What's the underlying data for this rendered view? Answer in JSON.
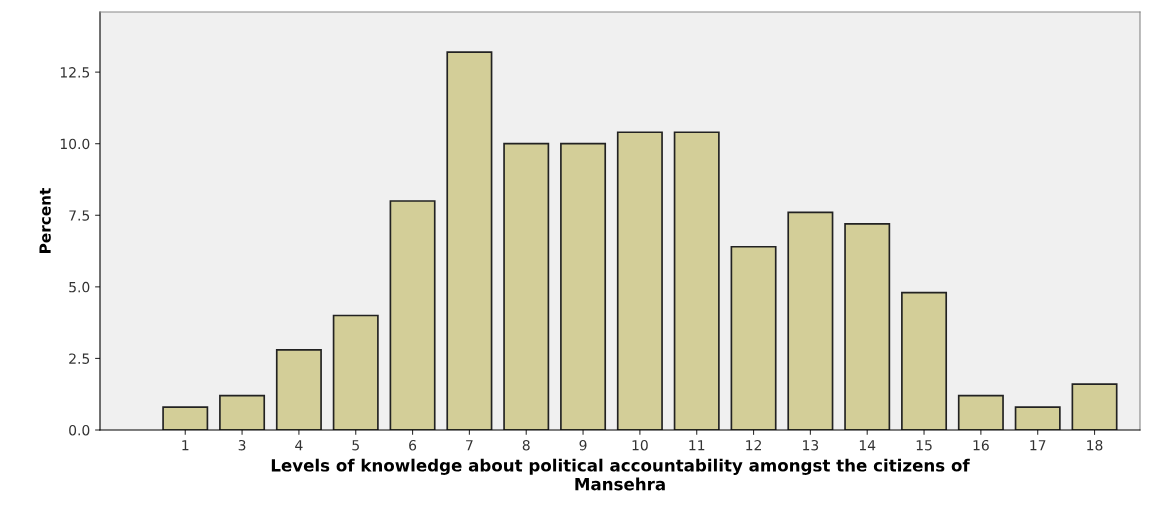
{
  "chart_data": {
    "type": "bar",
    "xlabel": "Levels of knowledge about political accountability amongst the citizens of\nMansehra",
    "ylabel": "Percent",
    "categories": [
      "1",
      "3",
      "4",
      "5",
      "6",
      "7",
      "8",
      "9",
      "10",
      "11",
      "12",
      "13",
      "14",
      "15",
      "16",
      "17",
      "18"
    ],
    "values": [
      0.8,
      1.2,
      2.8,
      4.0,
      8.0,
      13.2,
      10.0,
      10.0,
      10.4,
      10.4,
      6.4,
      7.6,
      7.2,
      4.8,
      1.2,
      0.8,
      1.6
    ],
    "color": "#d3ce98",
    "ylim": [
      0,
      14.6
    ],
    "yticks": [
      {
        "value": 0,
        "label": "0.0"
      },
      {
        "value": 2.5,
        "label": "2.5"
      },
      {
        "value": 5,
        "label": "5.0"
      },
      {
        "value": 7.5,
        "label": "7.5"
      },
      {
        "value": 10,
        "label": "10.0"
      },
      {
        "value": 12.5,
        "label": "12.5"
      }
    ],
    "grid": false
  }
}
